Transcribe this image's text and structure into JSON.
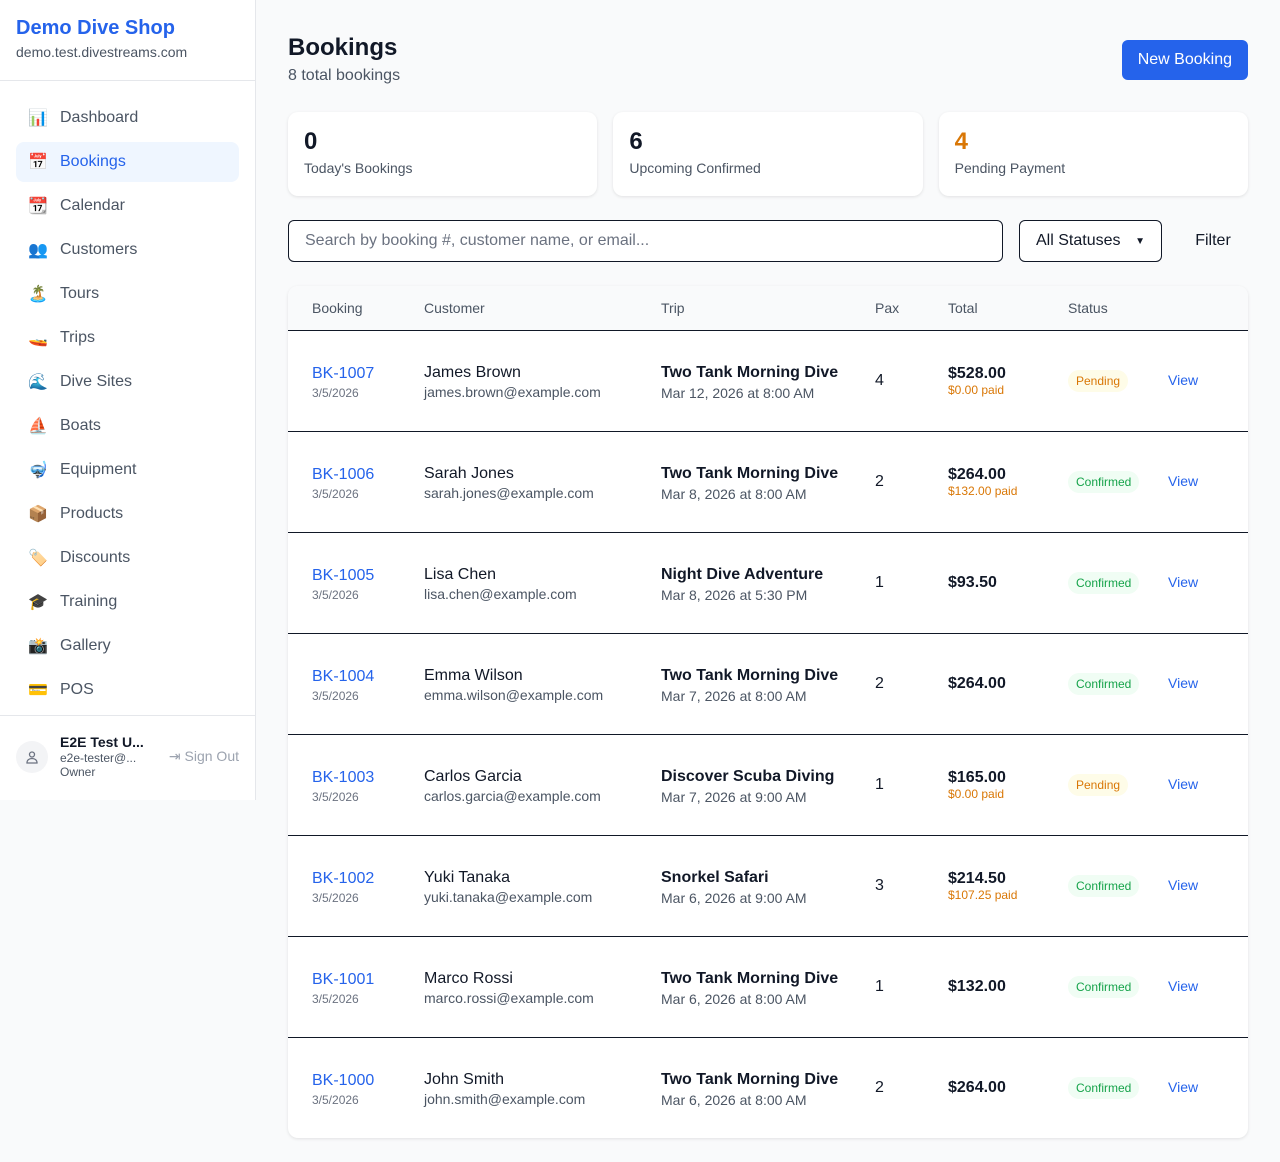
{
  "sidebar": {
    "shop_name": "Demo Dive Shop",
    "domain": "demo.test.divestreams.com",
    "items": [
      {
        "label": "Dashboard",
        "icon": "📊"
      },
      {
        "label": "Bookings",
        "icon": "📅",
        "active": true
      },
      {
        "label": "Calendar",
        "icon": "📆"
      },
      {
        "label": "Customers",
        "icon": "👥"
      },
      {
        "label": "Tours",
        "icon": "🏝️"
      },
      {
        "label": "Trips",
        "icon": "🚤"
      },
      {
        "label": "Dive Sites",
        "icon": "🌊"
      },
      {
        "label": "Boats",
        "icon": "⛵"
      },
      {
        "label": "Equipment",
        "icon": "🤿"
      },
      {
        "label": "Products",
        "icon": "📦"
      },
      {
        "label": "Discounts",
        "icon": "🏷️"
      },
      {
        "label": "Training",
        "icon": "🎓"
      },
      {
        "label": "Gallery",
        "icon": "📸"
      },
      {
        "label": "POS",
        "icon": "💳"
      }
    ],
    "user": {
      "name": "E2E Test U...",
      "email": "e2e-tester@...",
      "role": "Owner",
      "sign_out": "Sign Out"
    }
  },
  "header": {
    "title": "Bookings",
    "subtitle": "8 total bookings",
    "new_button": "New Booking"
  },
  "stats": [
    {
      "value": "0",
      "label": "Today's Bookings",
      "color": "#111827"
    },
    {
      "value": "6",
      "label": "Upcoming Confirmed",
      "color": "#111827"
    },
    {
      "value": "4",
      "label": "Pending Payment",
      "color": "#d97706"
    }
  ],
  "filters": {
    "search_placeholder": "Search by booking #, customer name, or email...",
    "status_value": "All Statuses",
    "filter_label": "Filter"
  },
  "table": {
    "columns": [
      "Booking",
      "Customer",
      "Trip",
      "Pax",
      "Total",
      "Status",
      ""
    ],
    "rows": [
      {
        "id": "BK-1007",
        "date": "3/5/2026",
        "customer": "James Brown",
        "email": "james.brown@example.com",
        "trip": "Two Tank Morning Dive",
        "trip_date": "Mar 12, 2026 at 8:00 AM",
        "pax": "4",
        "total": "$528.00",
        "paid": "$0.00 paid",
        "status": "Pending",
        "action": "View"
      },
      {
        "id": "BK-1006",
        "date": "3/5/2026",
        "customer": "Sarah Jones",
        "email": "sarah.jones@example.com",
        "trip": "Two Tank Morning Dive",
        "trip_date": "Mar 8, 2026 at 8:00 AM",
        "pax": "2",
        "total": "$264.00",
        "paid": "$132.00 paid",
        "status": "Confirmed",
        "action": "View"
      },
      {
        "id": "BK-1005",
        "date": "3/5/2026",
        "customer": "Lisa Chen",
        "email": "lisa.chen@example.com",
        "trip": "Night Dive Adventure",
        "trip_date": "Mar 8, 2026 at 5:30 PM",
        "pax": "1",
        "total": "$93.50",
        "paid": "",
        "status": "Confirmed",
        "action": "View"
      },
      {
        "id": "BK-1004",
        "date": "3/5/2026",
        "customer": "Emma Wilson",
        "email": "emma.wilson@example.com",
        "trip": "Two Tank Morning Dive",
        "trip_date": "Mar 7, 2026 at 8:00 AM",
        "pax": "2",
        "total": "$264.00",
        "paid": "",
        "status": "Confirmed",
        "action": "View"
      },
      {
        "id": "BK-1003",
        "date": "3/5/2026",
        "customer": "Carlos Garcia",
        "email": "carlos.garcia@example.com",
        "trip": "Discover Scuba Diving",
        "trip_date": "Mar 7, 2026 at 9:00 AM",
        "pax": "1",
        "total": "$165.00",
        "paid": "$0.00 paid",
        "status": "Pending",
        "action": "View"
      },
      {
        "id": "BK-1002",
        "date": "3/5/2026",
        "customer": "Yuki Tanaka",
        "email": "yuki.tanaka@example.com",
        "trip": "Snorkel Safari",
        "trip_date": "Mar 6, 2026 at 9:00 AM",
        "pax": "3",
        "total": "$214.50",
        "paid": "$107.25 paid",
        "status": "Confirmed",
        "action": "View"
      },
      {
        "id": "BK-1001",
        "date": "3/5/2026",
        "customer": "Marco Rossi",
        "email": "marco.rossi@example.com",
        "trip": "Two Tank Morning Dive",
        "trip_date": "Mar 6, 2026 at 8:00 AM",
        "pax": "1",
        "total": "$132.00",
        "paid": "",
        "status": "Confirmed",
        "action": "View"
      },
      {
        "id": "BK-1000",
        "date": "3/5/2026",
        "customer": "John Smith",
        "email": "john.smith@example.com",
        "trip": "Two Tank Morning Dive",
        "trip_date": "Mar 6, 2026 at 8:00 AM",
        "pax": "2",
        "total": "$264.00",
        "paid": "",
        "status": "Confirmed",
        "action": "View"
      }
    ]
  }
}
